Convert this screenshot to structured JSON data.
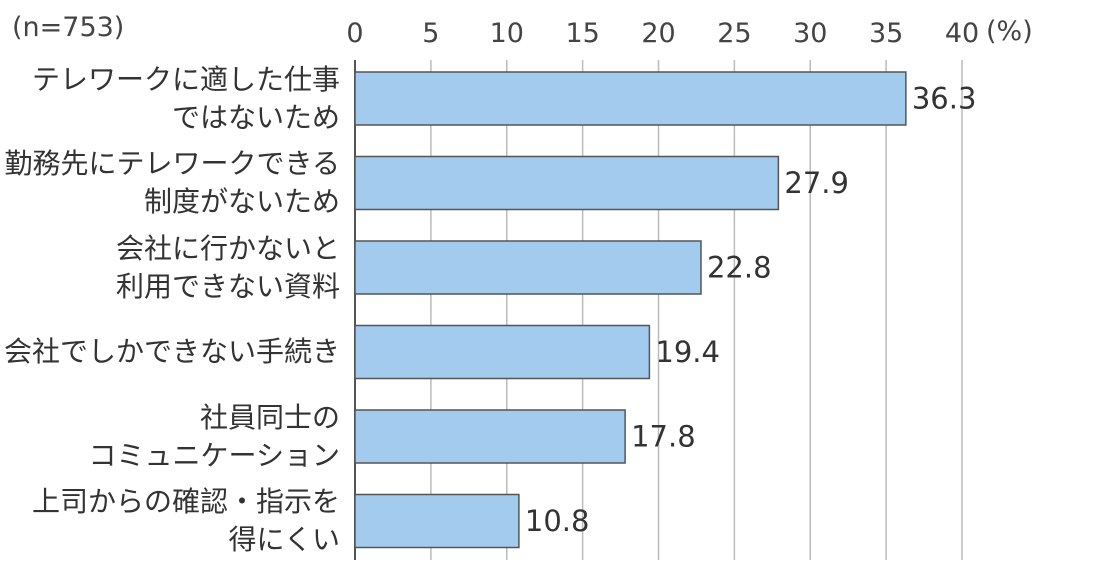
{
  "chart_data": {
    "type": "bar",
    "orientation": "horizontal",
    "sample_note": "(n=753)",
    "unit": "(%)",
    "categories": [
      [
        "テレワークに適した仕事",
        "ではないため"
      ],
      [
        "勤務先にテレワークできる",
        "制度がないため"
      ],
      [
        "会社に行かないと",
        "利用できない資料"
      ],
      [
        "会社でしかできない手続き"
      ],
      [
        "社員同士の",
        "コミュニケーション"
      ],
      [
        "上司からの確認・指示を",
        "得にくい"
      ]
    ],
    "values": [
      36.3,
      27.9,
      22.8,
      19.4,
      17.8,
      10.8
    ],
    "value_labels": [
      "36.3",
      "27.9",
      "22.8",
      "19.4",
      "17.8",
      "10.8"
    ],
    "xlim": [
      0,
      40
    ],
    "xticks": [
      "0",
      "5",
      "10",
      "15",
      "20",
      "25",
      "30",
      "35",
      "40"
    ],
    "grid": true,
    "bar_color": "#a3cbee",
    "bar_edge_color": "#555555",
    "grid_color": "#bbbbbb"
  }
}
